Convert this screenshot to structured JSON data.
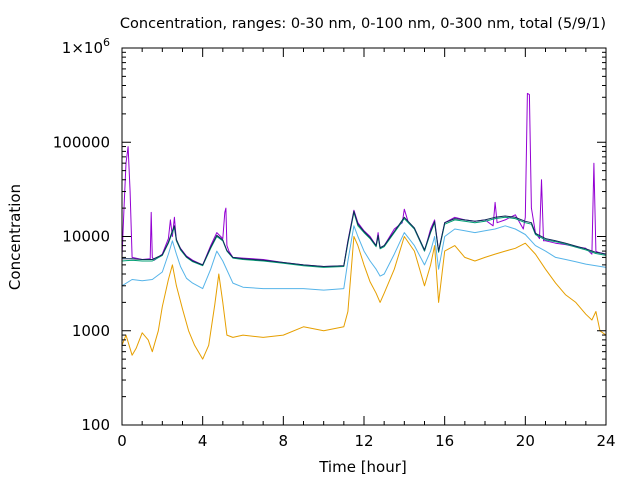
{
  "chart_data": {
    "type": "line",
    "title": "Concentration, ranges: 0-30 nm, 0-100 nm, 0-300 nm, total (5/9/1)",
    "xlabel": "Time [hour]",
    "ylabel": "Concentration",
    "xlim": [
      0,
      24
    ],
    "ylim": [
      100,
      1000000
    ],
    "y_scale": "log",
    "grid": false,
    "legend": "none",
    "x_ticks": [
      0,
      4,
      8,
      12,
      16,
      20,
      24
    ],
    "x_tick_labels": [
      "0",
      "4",
      "8",
      "12",
      "16",
      "20",
      "24"
    ],
    "y_ticks": [
      100,
      1000,
      10000,
      100000,
      1000000
    ],
    "y_tick_labels": [
      "100",
      "1000",
      "10000",
      "100000",
      "1×10"
    ],
    "y_tick_label_superscripts": [
      "",
      "",
      "",
      "",
      "6"
    ],
    "series": [
      {
        "color": "#9400d3",
        "x": [
          0,
          0.1,
          0.2,
          0.3,
          0.4,
          0.5,
          1.0,
          1.4,
          1.45,
          1.5,
          1.55,
          1.6,
          2.0,
          2.3,
          2.4,
          2.5,
          2.6,
          2.7,
          2.9,
          3.2,
          3.5,
          4.0,
          4.4,
          4.7,
          5.0,
          5.1,
          5.15,
          5.2,
          5.3,
          5.5,
          6.0,
          7.0,
          8.0,
          9.0,
          10.0,
          11.0,
          11.2,
          11.5,
          11.7,
          12.0,
          12.3,
          12.6,
          12.7,
          12.8,
          13.0,
          13.5,
          13.9,
          14.0,
          14.2,
          14.5,
          15.0,
          15.3,
          15.5,
          15.7,
          16.0,
          16.5,
          17.0,
          17.5,
          18.0,
          18.4,
          18.5,
          18.6,
          19.0,
          19.5,
          19.9,
          20.0,
          20.1,
          20.2,
          20.3,
          20.5,
          20.7,
          20.8,
          20.9,
          21.0,
          21.5,
          22.0,
          22.5,
          23.0,
          23.3,
          23.4,
          23.5,
          23.6,
          24.0
        ],
        "values": [
          6000,
          20000,
          60000,
          90000,
          30000,
          6000,
          5700,
          5800,
          18000,
          6000,
          5800,
          5600,
          6500,
          9500,
          15000,
          10000,
          16000,
          9000,
          7500,
          6200,
          5600,
          5000,
          8000,
          11000,
          9500,
          18000,
          20000,
          8000,
          7000,
          6000,
          5900,
          5700,
          5300,
          5000,
          4800,
          4900,
          9000,
          19000,
          14000,
          11500,
          10000,
          8000,
          11000,
          7500,
          8000,
          12000,
          14000,
          19500,
          14000,
          12000,
          7000,
          12000,
          15000,
          7000,
          14000,
          16000,
          15000,
          14500,
          15000,
          13000,
          23000,
          14000,
          15000,
          17000,
          12000,
          16000,
          330000,
          320000,
          20000,
          11000,
          9500,
          40000,
          9000,
          9000,
          8500,
          8200,
          7800,
          7500,
          6500,
          60000,
          7000,
          6800,
          6500
        ]
      },
      {
        "color": "#009e73",
        "x": [
          0,
          0.5,
          1.0,
          1.5,
          2.0,
          2.3,
          2.5,
          2.6,
          2.7,
          2.9,
          3.2,
          3.5,
          4.0,
          4.4,
          4.7,
          5.0,
          5.2,
          5.5,
          6.0,
          7.0,
          8.0,
          9.0,
          10.0,
          11.0,
          11.2,
          11.5,
          11.7,
          12.0,
          12.3,
          12.6,
          12.7,
          12.8,
          13.0,
          13.5,
          14.0,
          14.5,
          15.0,
          15.3,
          15.5,
          15.7,
          16.0,
          16.5,
          17.0,
          17.5,
          18.0,
          18.5,
          19.0,
          19.5,
          20.0,
          20.3,
          20.5,
          21.0,
          21.5,
          22.0,
          22.5,
          23.0,
          23.5,
          24.0
        ],
        "values": [
          5500,
          5600,
          5500,
          5500,
          6300,
          8500,
          11000,
          12500,
          9000,
          7200,
          6000,
          5400,
          4900,
          7500,
          10000,
          9000,
          7000,
          5900,
          5700,
          5500,
          5200,
          4900,
          4700,
          4800,
          8500,
          18000,
          13000,
          11000,
          9500,
          7800,
          10000,
          7400,
          7800,
          11000,
          15500,
          12000,
          7000,
          11000,
          14000,
          6800,
          13500,
          15000,
          14500,
          14000,
          14500,
          15500,
          16000,
          15500,
          14000,
          13500,
          10500,
          9200,
          8800,
          8300,
          7700,
          7200,
          6600,
          6300
        ]
      },
      {
        "color": "#56b4e9",
        "x": [
          0,
          0.5,
          1.0,
          1.5,
          2.0,
          2.3,
          2.5,
          2.7,
          2.9,
          3.2,
          3.5,
          4.0,
          4.4,
          4.7,
          5.0,
          5.5,
          6.0,
          7.0,
          8.0,
          9.0,
          10.0,
          11.0,
          11.2,
          11.5,
          11.7,
          12.0,
          12.3,
          12.6,
          12.8,
          13.0,
          13.5,
          14.0,
          14.5,
          15.0,
          15.3,
          15.5,
          15.7,
          16.0,
          16.5,
          17.0,
          17.5,
          18.0,
          18.5,
          19.0,
          19.5,
          20.0,
          20.5,
          21.0,
          21.5,
          22.0,
          22.5,
          23.0,
          23.5,
          24.0
        ],
        "values": [
          3000,
          3500,
          3400,
          3500,
          4200,
          6500,
          9000,
          6500,
          4800,
          3600,
          3200,
          2800,
          4500,
          7000,
          5500,
          3200,
          2900,
          2800,
          2800,
          2800,
          2700,
          2800,
          5500,
          13000,
          10000,
          7000,
          5500,
          4500,
          3800,
          4000,
          6500,
          11000,
          8000,
          5000,
          7000,
          10000,
          4500,
          10000,
          12000,
          11500,
          11000,
          11500,
          12000,
          13000,
          12000,
          10500,
          8000,
          7000,
          6000,
          5700,
          5400,
          5100,
          4900,
          4700
        ]
      },
      {
        "color": "#e69f00",
        "x": [
          0,
          0.2,
          0.5,
          0.7,
          1.0,
          1.3,
          1.5,
          1.8,
          2.0,
          2.3,
          2.5,
          2.7,
          3.0,
          3.3,
          3.6,
          4.0,
          4.3,
          4.6,
          4.8,
          5.0,
          5.2,
          5.5,
          6.0,
          7.0,
          8.0,
          9.0,
          10.0,
          11.0,
          11.2,
          11.5,
          11.7,
          12.0,
          12.3,
          12.6,
          12.8,
          13.0,
          13.5,
          14.0,
          14.5,
          15.0,
          15.3,
          15.5,
          15.7,
          16.0,
          16.5,
          17.0,
          17.5,
          18.0,
          18.5,
          19.0,
          19.5,
          20.0,
          20.5,
          21.0,
          21.5,
          22.0,
          22.5,
          23.0,
          23.3,
          23.5,
          23.7,
          24.0
        ],
        "values": [
          700,
          900,
          550,
          650,
          950,
          800,
          600,
          1000,
          1800,
          3500,
          5000,
          3000,
          1700,
          1000,
          700,
          500,
          700,
          1900,
          4000,
          2000,
          900,
          850,
          900,
          850,
          900,
          1100,
          1000,
          1100,
          1600,
          10000,
          8000,
          5000,
          3300,
          2500,
          2000,
          2500,
          4500,
          10000,
          7000,
          3000,
          5000,
          8000,
          2000,
          7000,
          8000,
          6000,
          5500,
          6000,
          6500,
          7000,
          7500,
          8500,
          6500,
          4500,
          3200,
          2400,
          2000,
          1500,
          1300,
          1600,
          1000,
          900
        ]
      },
      {
        "color": "#0d2b56",
        "x": [
          0,
          0.5,
          1.0,
          1.5,
          2.0,
          2.3,
          2.5,
          2.6,
          2.7,
          2.9,
          3.2,
          3.5,
          4.0,
          4.4,
          4.7,
          5.0,
          5.2,
          5.5,
          6.0,
          7.0,
          8.0,
          9.0,
          10.0,
          11.0,
          11.2,
          11.5,
          11.7,
          12.0,
          12.3,
          12.6,
          12.7,
          12.8,
          13.0,
          13.5,
          14.0,
          14.5,
          15.0,
          15.3,
          15.5,
          15.7,
          16.0,
          16.5,
          17.0,
          17.5,
          18.0,
          18.5,
          19.0,
          19.5,
          20.0,
          20.3,
          20.5,
          21.0,
          21.5,
          22.0,
          22.5,
          23.0,
          23.5,
          24.0
        ],
        "values": [
          5800,
          5800,
          5700,
          5700,
          6400,
          8700,
          11500,
          13000,
          9300,
          7400,
          6100,
          5500,
          5000,
          7700,
          10300,
          9200,
          7100,
          6000,
          5800,
          5600,
          5300,
          5000,
          4800,
          4900,
          8800,
          18500,
          13500,
          11300,
          9700,
          8000,
          10300,
          7600,
          8000,
          11300,
          16000,
          12300,
          7200,
          11300,
          14400,
          7000,
          14000,
          15500,
          15000,
          14500,
          15000,
          16000,
          16500,
          16000,
          14500,
          14000,
          10800,
          9500,
          9000,
          8500,
          7900,
          7400,
          6800,
          6500
        ]
      }
    ]
  }
}
